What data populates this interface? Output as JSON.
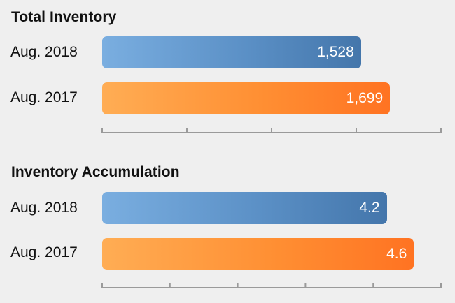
{
  "chart_data": [
    {
      "type": "bar",
      "orientation": "horizontal",
      "title": "Total Inventory",
      "categories": [
        "Aug. 2018",
        "Aug. 2017"
      ],
      "values": [
        1528,
        1699
      ],
      "value_labels": [
        "1,528",
        "1,699"
      ],
      "xlim": [
        0,
        2000
      ],
      "xtick_count": 5,
      "grid": false,
      "colors": [
        "#5b90c6",
        "#ff8a30"
      ]
    },
    {
      "type": "bar",
      "orientation": "horizontal",
      "title": "Inventory Accumulation",
      "categories": [
        "Aug. 2018",
        "Aug. 2017"
      ],
      "values": [
        4.2,
        4.6
      ],
      "value_labels": [
        "4.2",
        "4.6"
      ],
      "xlim": [
        0,
        5
      ],
      "xtick_count": 6,
      "grid": false,
      "colors": [
        "#5b90c6",
        "#ff8a30"
      ]
    }
  ]
}
